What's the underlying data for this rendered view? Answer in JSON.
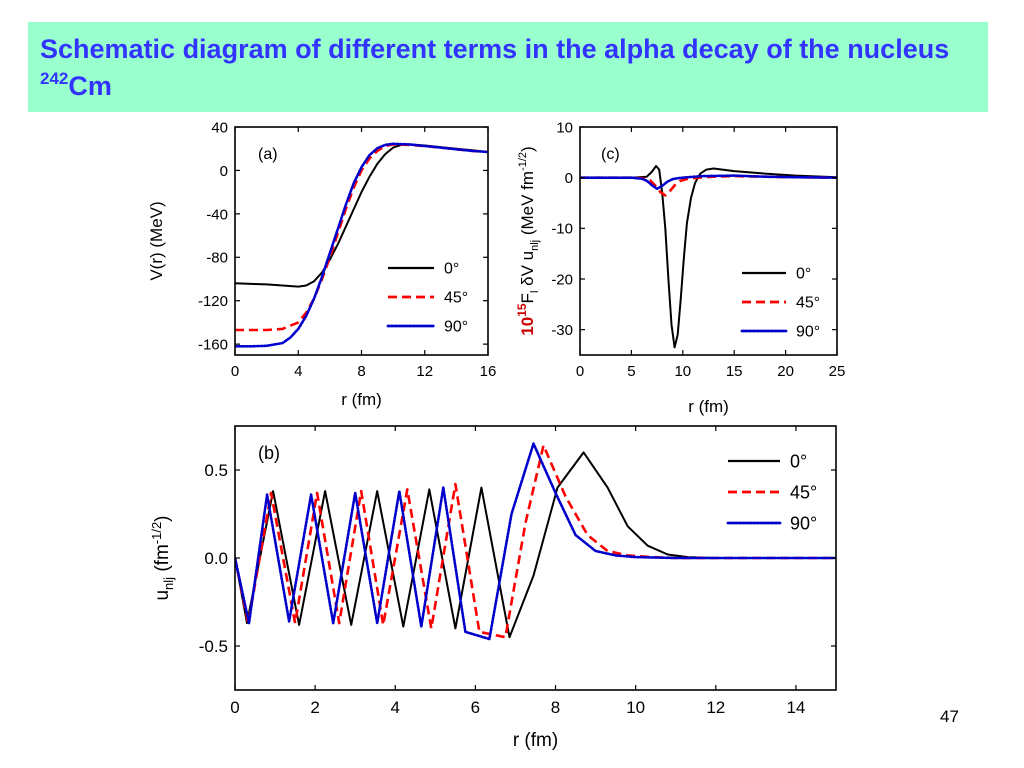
{
  "slide": {
    "title_main": "Schematic diagram of different terms in the alpha decay of the nucleus",
    "title_isotope_mass": "242",
    "title_isotope_symbol": "Cm",
    "title_color": "#3333ff",
    "title_background": "#99ffcc",
    "page_number": "47"
  },
  "chart_data": [
    {
      "panel": "(a)",
      "type": "line",
      "xlabel": "r (fm)",
      "ylabel": "V(r) (MeV)",
      "xlim": [
        0,
        16
      ],
      "ylim": [
        -170,
        40
      ],
      "xticks": [
        0,
        4,
        8,
        12,
        16
      ],
      "yticks": [
        40,
        0,
        -40,
        -80,
        -120,
        -160
      ],
      "legend_position": "right",
      "series": [
        {
          "name": "0°",
          "color": "#000000",
          "dash": "solid",
          "x": [
            0,
            1,
            2,
            3,
            4,
            4.5,
            5,
            5.5,
            6,
            6.5,
            7,
            7.5,
            8,
            8.5,
            9,
            9.5,
            10,
            10.5,
            11,
            12,
            13,
            14,
            15,
            16
          ],
          "y": [
            -104,
            -104.5,
            -105,
            -106,
            -107,
            -106,
            -102,
            -94,
            -82,
            -68,
            -52,
            -36,
            -20,
            -6,
            6,
            15,
            21,
            23.5,
            24,
            23,
            21.5,
            20,
            18.5,
            17
          ]
        },
        {
          "name": "45°",
          "color": "#ff0000",
          "dash": "dashed",
          "x": [
            0,
            1,
            2,
            3,
            4,
            4.5,
            5,
            5.5,
            6,
            6.5,
            7,
            7.5,
            8,
            8.5,
            9,
            9.5,
            10,
            11,
            12,
            13,
            14,
            15,
            16
          ],
          "y": [
            -147,
            -147,
            -147,
            -146,
            -140,
            -131,
            -118,
            -100,
            -80,
            -58,
            -36,
            -16,
            0,
            11,
            18,
            22.5,
            24,
            23.5,
            22.5,
            21,
            19.5,
            18,
            17
          ]
        },
        {
          "name": "90°",
          "color": "#0000cc",
          "dash": "dotted",
          "x": [
            0,
            1,
            2,
            3,
            3.5,
            4,
            4.5,
            5,
            5.5,
            6,
            6.5,
            7,
            7.5,
            8,
            8.5,
            9,
            9.5,
            10,
            11,
            12,
            13,
            14,
            15,
            16
          ],
          "y": [
            -162,
            -162,
            -161.5,
            -159,
            -154,
            -146,
            -134,
            -118,
            -98,
            -76,
            -54,
            -32,
            -12,
            3,
            14,
            20.5,
            23.5,
            24.5,
            24,
            22.5,
            21,
            19.5,
            18,
            17
          ]
        }
      ]
    },
    {
      "panel": "(c)",
      "type": "line",
      "xlabel": "r (fm)",
      "ylabel_prefix": "10",
      "ylabel_prefix_exponent": "15",
      "ylabel": "F",
      "ylabel_sub": "l",
      "ylabel_mid": " δV u",
      "ylabel_sub2": "nlj",
      "ylabel_units": " (MeV fm",
      "ylabel_units_exponent": "-1/2",
      "ylabel_units_close": ")",
      "ylabel_prefix_color": "#cc0000",
      "xlim": [
        0,
        25
      ],
      "ylim": [
        -35,
        10
      ],
      "xticks": [
        0,
        5,
        10,
        15,
        20,
        25
      ],
      "yticks": [
        10,
        0,
        -10,
        -20,
        -30
      ],
      "legend_position": "lower-right",
      "series": [
        {
          "name": "0°",
          "color": "#000000",
          "dash": "solid",
          "x": [
            0,
            5,
            6.5,
            7.0,
            7.4,
            7.7,
            8.0,
            8.3,
            8.6,
            8.9,
            9.2,
            9.5,
            9.8,
            10.1,
            10.4,
            10.8,
            11.2,
            11.7,
            12.3,
            13,
            15,
            18,
            21,
            25
          ],
          "y": [
            0,
            0,
            0.2,
            1.2,
            2.3,
            1.6,
            -3,
            -10,
            -20,
            -29,
            -33.5,
            -31,
            -24,
            -16,
            -9,
            -4,
            -1,
            0.8,
            1.6,
            1.8,
            1.3,
            0.8,
            0.4,
            0.1
          ]
        },
        {
          "name": "45°",
          "color": "#ff0000",
          "dash": "dashed",
          "x": [
            0,
            5,
            6,
            6.8,
            7.3,
            7.8,
            8.3,
            8.8,
            9.3,
            9.8,
            10.5,
            11.5,
            13,
            15,
            18,
            21,
            25
          ],
          "y": [
            0,
            0,
            -0.1,
            -0.5,
            -1.5,
            -2.8,
            -3.5,
            -2.5,
            -1.3,
            -0.6,
            -0.2,
            0,
            0.2,
            0.3,
            0.2,
            0.1,
            0
          ]
        },
        {
          "name": "90°",
          "color": "#0000cc",
          "dash": "dotted",
          "x": [
            0,
            5,
            6,
            6.5,
            7.0,
            7.5,
            8.0,
            8.5,
            9.0,
            9.5,
            10.5,
            12,
            15,
            18,
            21,
            25
          ],
          "y": [
            0,
            0,
            -0.2,
            -0.6,
            -1.5,
            -2.2,
            -1.6,
            -0.8,
            -0.3,
            -0.1,
            0.1,
            0.3,
            0.4,
            0.2,
            0.1,
            0
          ]
        }
      ]
    },
    {
      "panel": "(b)",
      "type": "line",
      "xlabel": "r (fm)",
      "ylabel": "u",
      "ylabel_sub": "nlj",
      "ylabel_units": " (fm",
      "ylabel_units_exponent": "-1/2",
      "ylabel_units_close": ")",
      "xlim": [
        0,
        15
      ],
      "ylim": [
        -0.75,
        0.75
      ],
      "xticks": [
        0,
        2,
        4,
        6,
        8,
        10,
        12,
        14
      ],
      "yticks": [
        0.5,
        0.0,
        -0.5
      ],
      "ytick_labels": [
        "0.5",
        "0.0",
        "-0.5"
      ],
      "legend_position": "top-right",
      "series": [
        {
          "name": "0°",
          "color": "#000000",
          "dash": "solid",
          "x": [
            0,
            0.3,
            0.95,
            1.6,
            2.25,
            2.9,
            3.55,
            4.2,
            4.85,
            5.5,
            6.15,
            6.85,
            7.45,
            8.05,
            8.7,
            9.3,
            9.8,
            10.3,
            10.8,
            11.3,
            12,
            13,
            14,
            15
          ],
          "y": [
            0,
            -0.37,
            0.38,
            -0.38,
            0.38,
            -0.38,
            0.38,
            -0.39,
            0.39,
            -0.4,
            0.4,
            -0.45,
            -0.1,
            0.4,
            0.6,
            0.4,
            0.18,
            0.07,
            0.02,
            0.005,
            0,
            0,
            0,
            0
          ]
        },
        {
          "name": "45°",
          "color": "#ff0000",
          "dash": "dashed",
          "x": [
            0,
            0.33,
            0.9,
            1.5,
            2.05,
            2.6,
            3.15,
            3.7,
            4.3,
            4.9,
            5.5,
            6.1,
            6.75,
            7.25,
            7.7,
            8.25,
            8.8,
            9.3,
            9.8,
            10.4,
            11,
            12,
            13,
            15
          ],
          "y": [
            0,
            -0.37,
            0.37,
            -0.37,
            0.37,
            -0.37,
            0.38,
            -0.38,
            0.39,
            -0.4,
            0.42,
            -0.42,
            -0.45,
            0.2,
            0.64,
            0.35,
            0.13,
            0.04,
            0.015,
            0.005,
            0,
            0,
            0,
            0
          ]
        },
        {
          "name": "90°",
          "color": "#0000cc",
          "dash": "dotted",
          "x": [
            0,
            0.35,
            0.8,
            1.35,
            1.9,
            2.45,
            3.0,
            3.55,
            4.1,
            4.65,
            5.2,
            5.75,
            6.35,
            6.9,
            7.45,
            8.0,
            8.5,
            9.0,
            9.5,
            10,
            11,
            12,
            13,
            15
          ],
          "y": [
            0,
            -0.37,
            0.36,
            -0.36,
            0.36,
            -0.37,
            0.37,
            -0.37,
            0.38,
            -0.39,
            0.4,
            -0.42,
            -0.46,
            0.25,
            0.65,
            0.37,
            0.13,
            0.04,
            0.015,
            0.005,
            0,
            0,
            0,
            0
          ]
        }
      ]
    }
  ]
}
